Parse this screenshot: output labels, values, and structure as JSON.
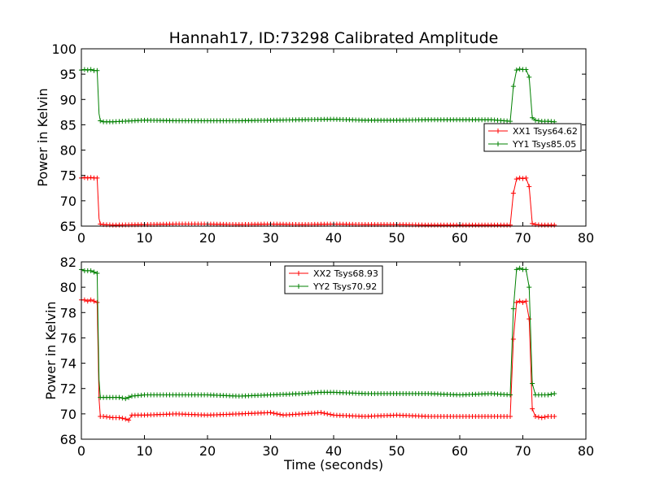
{
  "title": "Hannah17, ID:73298 Calibrated Amplitude",
  "xlabel": "Time (seconds)",
  "colors": {
    "xx": "#ff0000",
    "yy": "#008000"
  },
  "chart_data": [
    {
      "type": "line",
      "ylabel": "Power in Kelvin",
      "xlim": [
        0,
        80
      ],
      "ylim": [
        65,
        100
      ],
      "xticks": [
        "0",
        "10",
        "20",
        "30",
        "40",
        "50",
        "60",
        "70",
        "80"
      ],
      "yticks": [
        "65",
        "70",
        "75",
        "80",
        "85",
        "90",
        "95",
        "100"
      ],
      "legend_position": "center-right",
      "series": [
        {
          "name": "XX1 Tsys64.62",
          "color": "#ff0000",
          "x": [
            0,
            0.5,
            1,
            1.5,
            2,
            2.5,
            2.8,
            3,
            3.5,
            5,
            10,
            15,
            20,
            25,
            30,
            35,
            40,
            45,
            50,
            55,
            60,
            65,
            68,
            68.5,
            69,
            69.5,
            70,
            70.5,
            71,
            71.5,
            72,
            73,
            74,
            75
          ],
          "y": [
            74.5,
            74.6,
            74.5,
            74.6,
            74.5,
            74.5,
            66.5,
            65.4,
            65.3,
            65.2,
            65.3,
            65.4,
            65.4,
            65.3,
            65.4,
            65.3,
            65.4,
            65.3,
            65.3,
            65.2,
            65.2,
            65.2,
            65.2,
            71.5,
            74.3,
            74.5,
            74.4,
            74.5,
            72.8,
            65.5,
            65.3,
            65.2,
            65.2,
            65.2
          ]
        },
        {
          "name": "YY1 Tsys85.05",
          "color": "#008000",
          "x": [
            0,
            0.5,
            1,
            1.5,
            2,
            2.5,
            2.8,
            3,
            3.5,
            5,
            10,
            15,
            20,
            25,
            30,
            35,
            40,
            45,
            50,
            55,
            60,
            65,
            68,
            68.5,
            69,
            69.5,
            70,
            70.5,
            71,
            71.5,
            72,
            73,
            74,
            75
          ],
          "y": [
            95.8,
            95.9,
            95.8,
            95.9,
            95.7,
            95.7,
            87.2,
            85.8,
            85.6,
            85.6,
            85.9,
            85.8,
            85.8,
            85.8,
            85.9,
            86.0,
            86.1,
            85.9,
            85.9,
            86.0,
            86.0,
            86.0,
            85.7,
            92.6,
            95.8,
            96.0,
            95.9,
            95.9,
            94.4,
            86.4,
            85.9,
            85.7,
            85.7,
            85.6
          ]
        }
      ]
    },
    {
      "type": "line",
      "ylabel": "Power in Kelvin",
      "xlabel": "Time (seconds)",
      "xlim": [
        0,
        80
      ],
      "ylim": [
        68,
        82
      ],
      "xticks": [
        "0",
        "10",
        "20",
        "30",
        "40",
        "50",
        "60",
        "70",
        "80"
      ],
      "yticks": [
        "68",
        "70",
        "72",
        "74",
        "76",
        "78",
        "80",
        "82"
      ],
      "legend_position": "top-center",
      "series": [
        {
          "name": "XX2 Tsys68.93",
          "color": "#ff0000",
          "x": [
            0,
            0.5,
            1,
            1.5,
            2,
            2.5,
            2.8,
            3,
            3.5,
            5,
            6,
            7,
            7.5,
            8,
            10,
            15,
            20,
            25,
            30,
            32,
            35,
            38,
            40,
            45,
            50,
            55,
            60,
            65,
            68,
            68.5,
            69,
            69.5,
            70,
            70.5,
            71,
            71.5,
            72,
            73,
            74,
            75
          ],
          "y": [
            79.0,
            79.0,
            78.9,
            79.0,
            78.9,
            78.8,
            71.2,
            69.8,
            69.8,
            69.7,
            69.7,
            69.6,
            69.5,
            69.9,
            69.9,
            70.0,
            69.9,
            70.0,
            70.1,
            69.9,
            70.0,
            70.1,
            69.9,
            69.8,
            69.9,
            69.8,
            69.8,
            69.8,
            69.8,
            75.9,
            78.8,
            78.9,
            78.8,
            78.9,
            77.5,
            70.4,
            69.8,
            69.7,
            69.8,
            69.8
          ]
        },
        {
          "name": "YY2 Tsys70.92",
          "color": "#008000",
          "x": [
            0,
            0.5,
            1,
            1.5,
            2,
            2.5,
            2.8,
            3,
            3.5,
            5,
            6,
            7,
            8,
            10,
            15,
            20,
            25,
            30,
            35,
            38,
            40,
            45,
            50,
            55,
            60,
            65,
            68,
            68.5,
            69,
            69.5,
            70,
            70.5,
            71,
            71.5,
            72,
            73,
            74,
            75
          ],
          "y": [
            81.4,
            81.3,
            81.3,
            81.3,
            81.2,
            81.1,
            72.7,
            71.3,
            71.3,
            71.3,
            71.3,
            71.2,
            71.4,
            71.5,
            71.5,
            71.5,
            71.4,
            71.5,
            71.6,
            71.7,
            71.7,
            71.6,
            71.6,
            71.6,
            71.5,
            71.6,
            71.5,
            78.3,
            81.4,
            81.5,
            81.4,
            81.4,
            80.0,
            72.4,
            71.5,
            71.5,
            71.5,
            71.6
          ]
        }
      ]
    }
  ]
}
